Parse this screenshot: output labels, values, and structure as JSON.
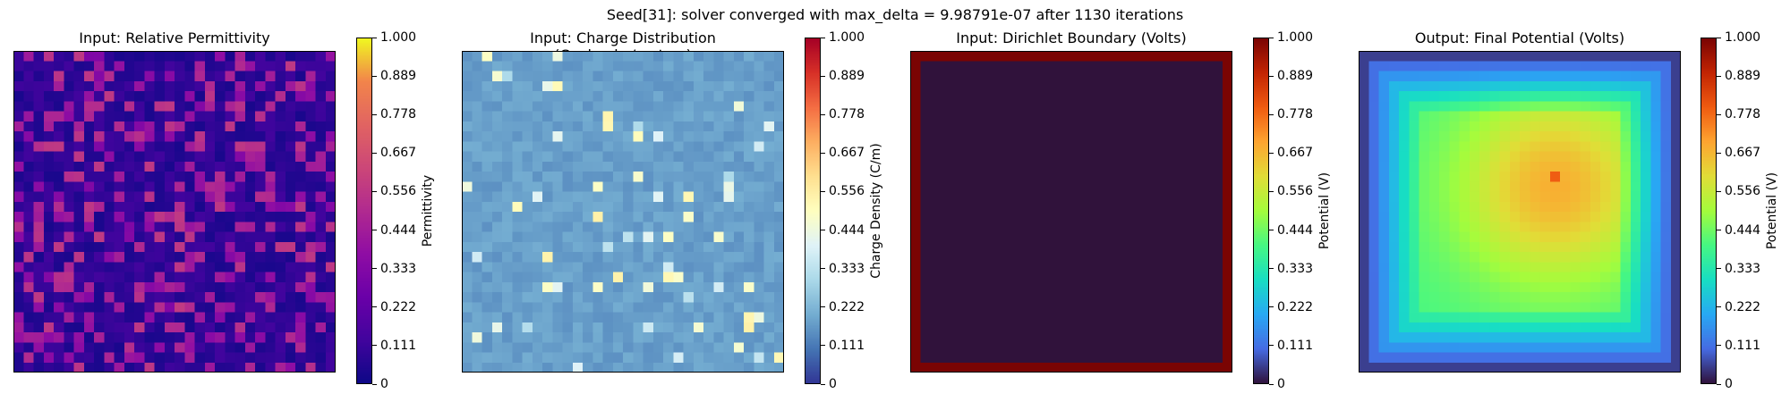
{
  "figure": {
    "suptitle": "Seed[31]: solver converged with max_delta = 9.98791e-07 after 1130 iterations"
  },
  "chart_data": [
    {
      "type": "heatmap",
      "title": "Input: Relative Permittivity",
      "colormap": "plasma",
      "colorbar_label": "Permittivity",
      "vmin": 0,
      "vmax": 1,
      "grid_size": [
        32,
        32
      ],
      "value_summary": "mostly dark-blue background (~0.05) with scattered purple/magenta cells (~0.3-0.55)",
      "colorbar_ticks": [
        "0",
        "0.111",
        "0.222",
        "0.333",
        "0.444",
        "0.556",
        "0.667",
        "0.778",
        "0.889",
        "1.000"
      ]
    },
    {
      "type": "heatmap",
      "title": "Input: Charge Distribution (Coulombs/meters)",
      "colormap": "RdYlBu_r",
      "colorbar_label": "Charge Density (C/m)",
      "vmin": 0,
      "vmax": 1,
      "grid_size": [
        32,
        32
      ],
      "value_summary": "near-uniform light blue (~0.15-0.18) with a few brighter spikes (~0.3-0.55)",
      "colorbar_ticks": [
        "0",
        "0.111",
        "0.222",
        "0.333",
        "0.444",
        "0.556",
        "0.667",
        "0.778",
        "0.889",
        "1.000"
      ]
    },
    {
      "type": "heatmap",
      "title": "Input: Dirichlet Boundary (Volts)",
      "colormap": "turbo",
      "colorbar_label": "Potential (V)",
      "vmin": 0,
      "vmax": 1,
      "grid_size": [
        32,
        32
      ],
      "boundary_value": 1.0,
      "interior_value": 0.0,
      "colorbar_ticks": [
        "0",
        "0.111",
        "0.222",
        "0.333",
        "0.444",
        "0.556",
        "0.667",
        "0.778",
        "0.889",
        "1.000"
      ]
    },
    {
      "type": "heatmap",
      "title": "Output: Final Potential (Volts)",
      "colormap": "turbo",
      "colorbar_label": "Potential (V)",
      "vmin": 0,
      "vmax": 1,
      "grid_size": [
        32,
        32
      ],
      "value_summary": "smooth field peaking near 0.6-0.7 right of center, falling to ~0.05 at edges",
      "colorbar_ticks": [
        "0",
        "0.111",
        "0.222",
        "0.333",
        "0.444",
        "0.556",
        "0.667",
        "0.778",
        "0.889",
        "1.000"
      ]
    }
  ]
}
